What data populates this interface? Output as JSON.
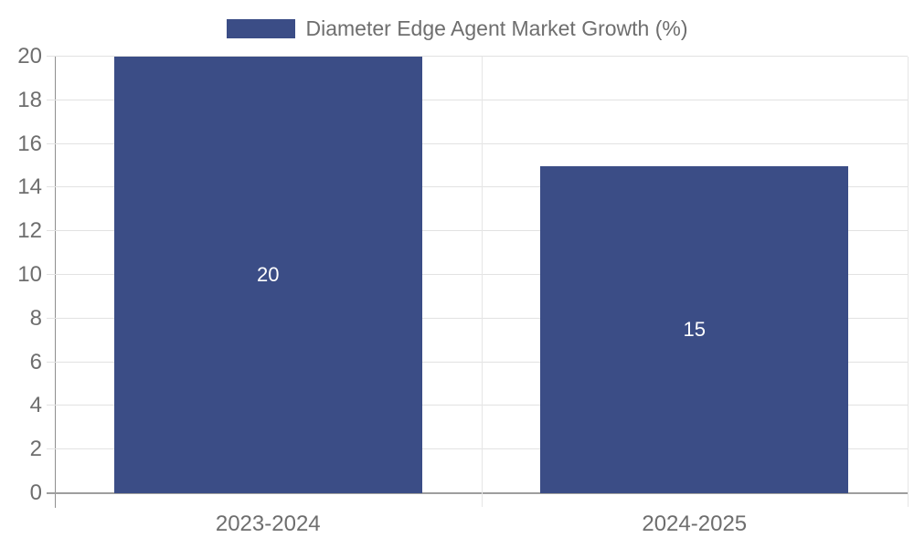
{
  "chart_data": {
    "type": "bar",
    "title": "Diameter Edge Agent Market Growth (%)",
    "categories": [
      "2023-2024",
      "2024-2025"
    ],
    "values": [
      20,
      15
    ],
    "bar_labels": [
      "20",
      "15"
    ],
    "xlabel": "",
    "ylabel": "",
    "ylim": [
      0,
      20
    ],
    "ytick_step": 2,
    "yticks": [
      0,
      2,
      4,
      6,
      8,
      10,
      12,
      14,
      16,
      18,
      20
    ],
    "grid": true,
    "legend_position": "top-center",
    "colors": {
      "bar": "#3b4d86",
      "bar_value_text": "#ffffff",
      "axis_text": "#6e6e6e",
      "gridline": "#e2e2e2",
      "axis_line": "#9e9e9e"
    }
  },
  "legend": {
    "label": "Diameter Edge Agent Market Growth (%)",
    "swatch_color": "#3b4d86"
  }
}
